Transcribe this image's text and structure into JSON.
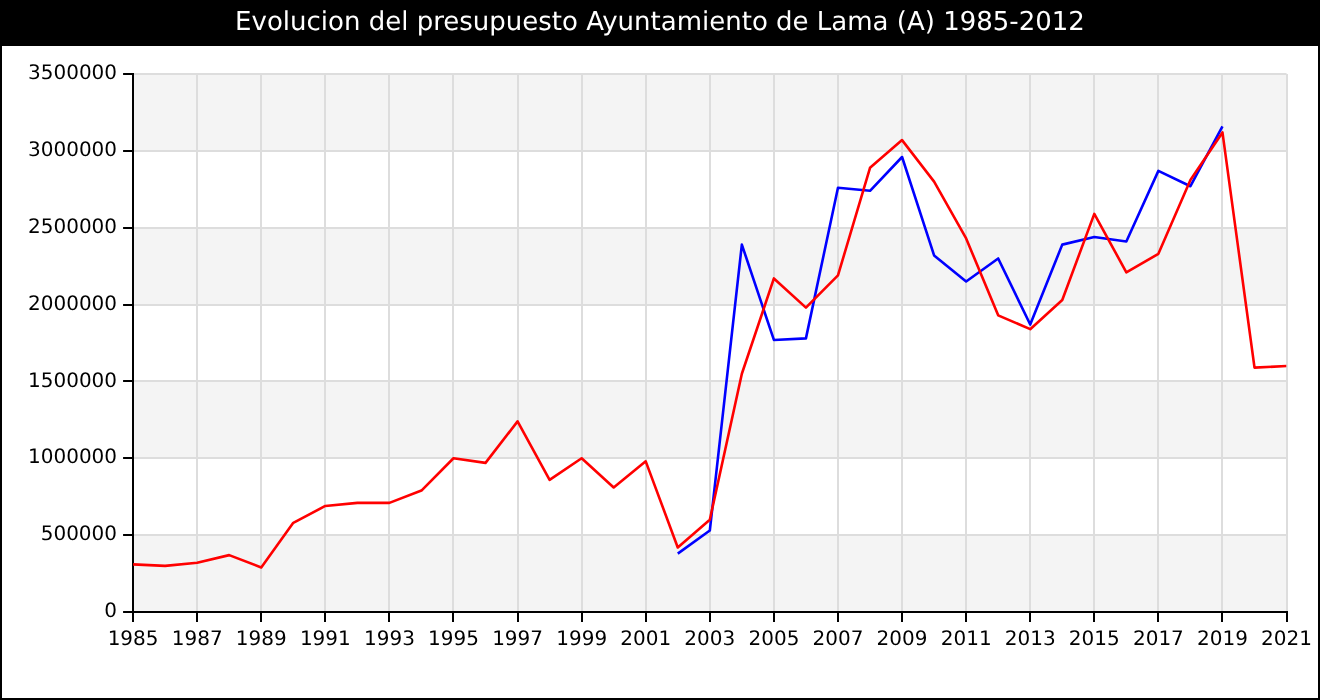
{
  "chart_data": {
    "type": "line",
    "title": "Evolucion del presupuesto Ayuntamiento de Lama (A) 1985-2012",
    "x": [
      1985,
      1986,
      1987,
      1988,
      1989,
      1990,
      1991,
      1992,
      1993,
      1994,
      1995,
      1996,
      1997,
      1998,
      1999,
      2000,
      2001,
      2002,
      2003,
      2004,
      2005,
      2006,
      2007,
      2008,
      2009,
      2010,
      2011,
      2012,
      2013,
      2014,
      2015,
      2016,
      2017,
      2018,
      2019,
      2020,
      2021
    ],
    "series": [
      {
        "color": "#ff0000",
        "values": [
          310000,
          300000,
          320000,
          370000,
          290000,
          580000,
          690000,
          710000,
          710000,
          790000,
          1000000,
          970000,
          1240000,
          860000,
          1000000,
          810000,
          980000,
          420000,
          600000,
          1550000,
          2170000,
          1980000,
          2190000,
          2890000,
          3070000,
          2800000,
          2430000,
          1930000,
          1840000,
          2030000,
          2590000,
          2210000,
          2330000,
          2810000,
          3120000,
          1590000,
          1600000
        ]
      },
      {
        "color": "#0000ff",
        "values": [
          null,
          null,
          null,
          null,
          null,
          null,
          null,
          null,
          null,
          null,
          null,
          null,
          null,
          null,
          null,
          null,
          null,
          380000,
          530000,
          2390000,
          1770000,
          1780000,
          2760000,
          2740000,
          2960000,
          2320000,
          2150000,
          2300000,
          1870000,
          2390000,
          2440000,
          2410000,
          2870000,
          2770000,
          3160000,
          null,
          null
        ]
      }
    ],
    "xlim": [
      1985,
      2021
    ],
    "xticks": [
      1985,
      1987,
      1989,
      1991,
      1993,
      1995,
      1997,
      1999,
      2001,
      2003,
      2005,
      2007,
      2009,
      2011,
      2013,
      2015,
      2017,
      2019,
      2021
    ],
    "ylim": [
      0,
      3500000
    ],
    "yticks": [
      0,
      500000,
      1000000,
      1500000,
      2000000,
      2500000,
      3000000,
      3500000
    ],
    "grid": true,
    "legend": false,
    "marker": "none",
    "line_style": "solid"
  }
}
